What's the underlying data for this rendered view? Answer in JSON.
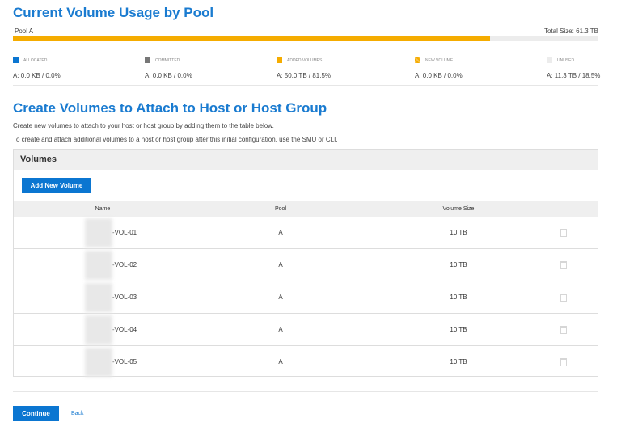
{
  "usage": {
    "title": "Current Volume Usage by Pool",
    "pool_label": "Pool A",
    "total_size": "Total Size: 61.3 TB",
    "fill_percent": 81.5,
    "legend": [
      {
        "label": "Allocated",
        "value": "A: 0.0 KB / 0.0%",
        "color": "#0b76d1"
      },
      {
        "label": "Committed",
        "value": "A: 0.0 KB / 0.0%",
        "color": "#777777"
      },
      {
        "label": "Added Volumes",
        "value": "A: 50.0 TB / 81.5%",
        "color": "#f5ac00"
      },
      {
        "label": "New Volume",
        "value": "A: 0.0 KB / 0.0%",
        "color": "#f7c24a"
      },
      {
        "label": "Unused",
        "value": "A: 11.3 TB / 18.5%",
        "color": "#ececec"
      }
    ]
  },
  "create": {
    "title": "Create Volumes to Attach to Host or Host Group",
    "desc1": "Create new volumes to attach to your host or host group by adding them to the table below.",
    "desc2": "To create and attach additional volumes to a host or host group after this initial configuration, use the SMU or CLI."
  },
  "volumes": {
    "title": "Volumes",
    "add_label": "Add New Volume",
    "columns": [
      "Name",
      "Pool",
      "Volume Size"
    ],
    "rows": [
      {
        "name": "-VOL-01",
        "pool": "A",
        "size": "10 TB"
      },
      {
        "name": "-VOL-02",
        "pool": "A",
        "size": "10 TB"
      },
      {
        "name": "-VOL-03",
        "pool": "A",
        "size": "10 TB"
      },
      {
        "name": "-VOL-04",
        "pool": "A",
        "size": "10 TB"
      },
      {
        "name": "-VOL-05",
        "pool": "A",
        "size": "10 TB"
      }
    ]
  },
  "footer": {
    "continue_label": "Continue",
    "back_label": "Back"
  }
}
